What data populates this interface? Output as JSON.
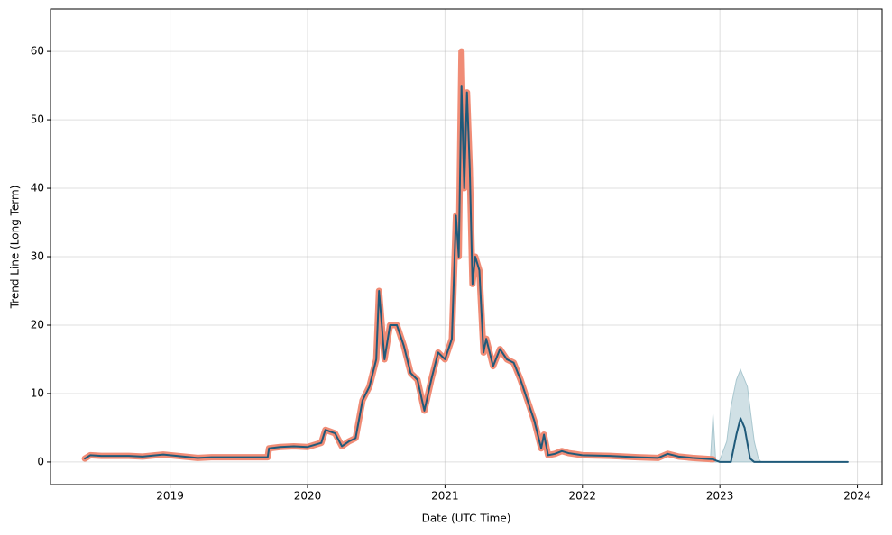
{
  "chart_data": {
    "type": "line",
    "xlabel": "Date (UTC Time)",
    "ylabel": "Trend Line (Long Term)",
    "xlim": [
      2018.13,
      2024.18
    ],
    "xticks": [
      2019,
      2020,
      2021,
      2022,
      2023,
      2024
    ],
    "ylim": [
      -3.3,
      66.2
    ],
    "yticks": [
      0,
      10,
      20,
      30,
      40,
      50,
      60
    ],
    "grid": true,
    "band": {
      "color": "#a9c7cf",
      "x": [
        2022.93,
        2022.95,
        2022.97,
        2023.0,
        2023.05,
        2023.08,
        2023.12,
        2023.15,
        2023.2,
        2023.25,
        2023.28,
        2023.3
      ],
      "upper": [
        0,
        7,
        0,
        0.3,
        3,
        8,
        12,
        13.5,
        11,
        3,
        0.5,
        0
      ],
      "lower": [
        0,
        0,
        0,
        0,
        0,
        0,
        0,
        0,
        0,
        0,
        0,
        0
      ]
    },
    "series": [
      {
        "color": "#f08c76",
        "width": 7,
        "x": [
          2018.38,
          2018.42,
          2018.5,
          2018.6,
          2018.7,
          2018.8,
          2018.9,
          2018.95,
          2019.0,
          2019.1,
          2019.2,
          2019.3,
          2019.5,
          2019.71,
          2019.72,
          2019.8,
          2019.9,
          2020.0,
          2020.1,
          2020.13,
          2020.2,
          2020.25,
          2020.3,
          2020.35,
          2020.4,
          2020.45,
          2020.5,
          2020.52,
          2020.56,
          2020.6,
          2020.65,
          2020.7,
          2020.75,
          2020.8,
          2020.85,
          2020.9,
          2020.95,
          2021.0,
          2021.05,
          2021.08,
          2021.1,
          2021.12,
          2021.14,
          2021.16,
          2021.18,
          2021.2,
          2021.22,
          2021.25,
          2021.28,
          2021.3,
          2021.35,
          2021.4,
          2021.45,
          2021.5,
          2021.55,
          2021.6,
          2021.65,
          2021.7,
          2021.72,
          2021.75,
          2021.8,
          2021.85,
          2021.9,
          2022.0,
          2022.2,
          2022.4,
          2022.55,
          2022.62,
          2022.7,
          2022.8,
          2022.95
        ],
        "values": [
          0.5,
          1.0,
          0.9,
          0.9,
          0.9,
          0.8,
          1.0,
          1.1,
          1.0,
          0.8,
          0.6,
          0.7,
          0.7,
          0.7,
          2.0,
          2.2,
          2.3,
          2.2,
          2.8,
          4.7,
          4.2,
          2.3,
          3.0,
          3.5,
          9.0,
          11.0,
          15.0,
          25.0,
          15.0,
          20.0,
          20.0,
          17.0,
          13.0,
          12.0,
          7.5,
          12.0,
          16.0,
          15.0,
          18.0,
          36.0,
          30.0,
          60.0,
          40.0,
          54.0,
          43.0,
          26.0,
          30.0,
          28.0,
          16.0,
          18.0,
          14.0,
          16.5,
          15.0,
          14.5,
          12.0,
          9.0,
          6.0,
          2.0,
          4.0,
          1.0,
          1.2,
          1.6,
          1.3,
          1.0,
          0.9,
          0.7,
          0.6,
          1.2,
          0.8,
          0.6,
          0.4
        ]
      },
      {
        "color": "#1f5a7a",
        "width": 2,
        "x": [
          2018.38,
          2018.42,
          2018.5,
          2018.6,
          2018.7,
          2018.8,
          2018.9,
          2018.95,
          2019.0,
          2019.1,
          2019.2,
          2019.3,
          2019.5,
          2019.71,
          2019.72,
          2019.8,
          2019.9,
          2020.0,
          2020.1,
          2020.13,
          2020.2,
          2020.25,
          2020.3,
          2020.35,
          2020.4,
          2020.45,
          2020.5,
          2020.52,
          2020.56,
          2020.6,
          2020.65,
          2020.7,
          2020.75,
          2020.8,
          2020.85,
          2020.9,
          2020.95,
          2021.0,
          2021.05,
          2021.08,
          2021.1,
          2021.12,
          2021.14,
          2021.16,
          2021.18,
          2021.2,
          2021.22,
          2021.25,
          2021.28,
          2021.3,
          2021.35,
          2021.4,
          2021.45,
          2021.5,
          2021.55,
          2021.6,
          2021.65,
          2021.7,
          2021.72,
          2021.75,
          2021.8,
          2021.85,
          2021.9,
          2022.0,
          2022.2,
          2022.4,
          2022.55,
          2022.62,
          2022.7,
          2022.8,
          2022.95,
          2023.0,
          2023.08,
          2023.12,
          2023.15,
          2023.18,
          2023.22,
          2023.25,
          2023.93
        ],
        "values": [
          0.5,
          1.0,
          0.9,
          0.9,
          0.9,
          0.8,
          1.0,
          1.1,
          1.0,
          0.8,
          0.6,
          0.7,
          0.7,
          0.7,
          2.0,
          2.2,
          2.3,
          2.2,
          2.8,
          4.7,
          4.2,
          2.3,
          3.0,
          3.5,
          9.0,
          11.0,
          15.0,
          25.0,
          15.0,
          20.0,
          20.0,
          17.0,
          13.0,
          12.0,
          7.5,
          12.0,
          16.0,
          15.0,
          18.0,
          36.0,
          30.0,
          55.0,
          40.0,
          54.0,
          43.0,
          26.0,
          30.0,
          28.0,
          16.0,
          18.0,
          14.0,
          16.5,
          15.0,
          14.5,
          12.0,
          9.0,
          6.0,
          2.0,
          4.0,
          1.0,
          1.2,
          1.6,
          1.3,
          1.0,
          0.9,
          0.7,
          0.6,
          1.2,
          0.8,
          0.6,
          0.4,
          0,
          0,
          4,
          6.4,
          5,
          0.5,
          0,
          0
        ]
      }
    ]
  }
}
